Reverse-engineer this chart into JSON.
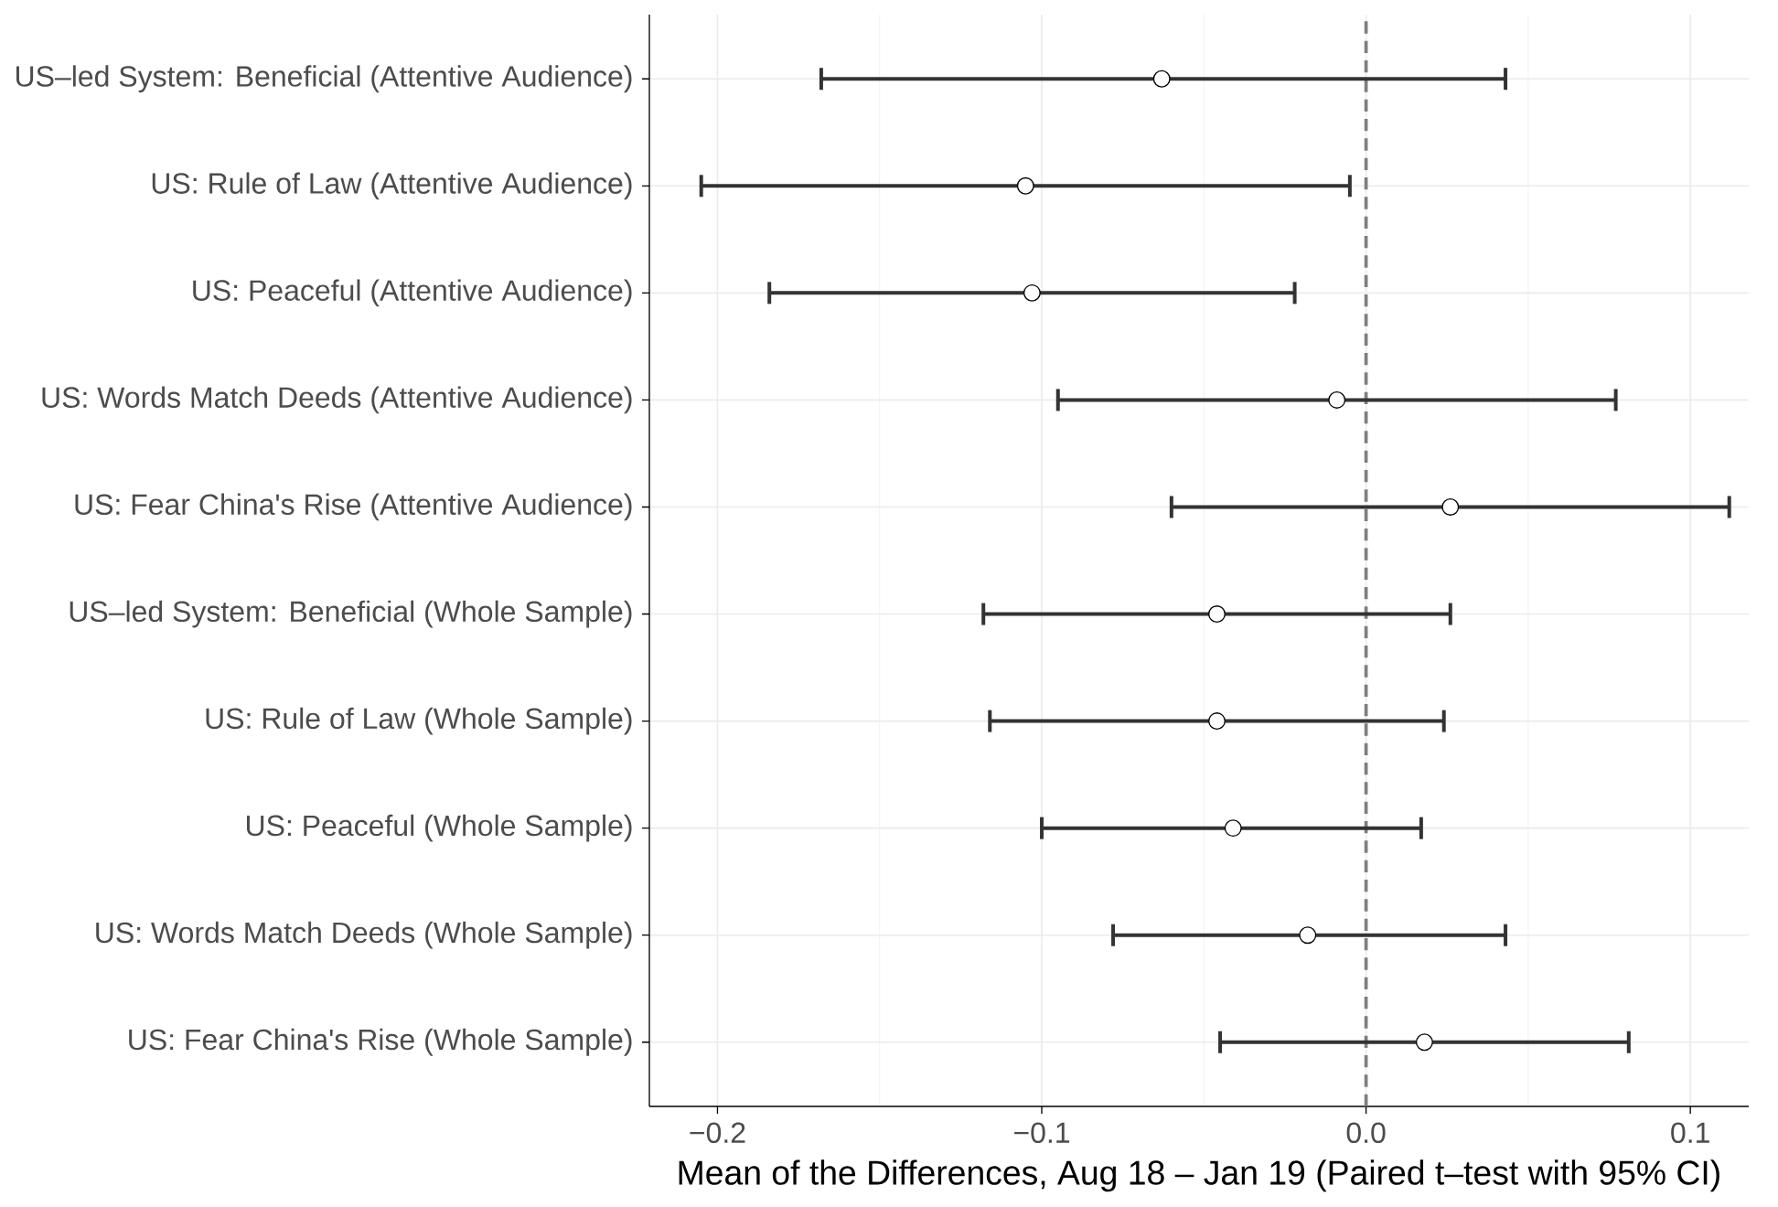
{
  "chart_data": {
    "type": "scatter",
    "orientation": "horizontal",
    "xlabel": "Mean of the Differences, Aug 18 – Jan 19 (Paired t–test with 95% CI)",
    "categories": [
      "US–led System: Beneficial (Attentive Audience)",
      "US: Rule of Law (Attentive Audience)",
      "US: Peaceful (Attentive Audience)",
      "US: Words Match Deeds (Attentive Audience)",
      "US: Fear China's Rise (Attentive Audience)",
      "US–led System: Beneficial (Whole Sample)",
      "US: Rule of Law (Whole Sample)",
      "US: Peaceful (Whole Sample)",
      "US: Words Match Deeds (Whole Sample)",
      "US: Fear China's Rise (Whole Sample)"
    ],
    "series": [
      {
        "color": "#ffffff",
        "values": [
          -0.063,
          -0.105,
          -0.103,
          -0.009,
          0.026,
          -0.046,
          -0.046,
          -0.041,
          -0.018,
          0.018
        ],
        "errors": [
          [
            -0.168,
            0.043
          ],
          [
            -0.205,
            -0.005
          ],
          [
            -0.184,
            -0.022
          ],
          [
            -0.095,
            0.077
          ],
          [
            -0.06,
            0.112
          ],
          [
            -0.118,
            0.026
          ],
          [
            -0.116,
            0.024
          ],
          [
            -0.1,
            0.017
          ],
          [
            -0.078,
            0.043
          ],
          [
            -0.045,
            0.081
          ]
        ]
      }
    ],
    "xlim": [
      -0.221,
      0.118
    ],
    "xticks": [
      {
        "value": -0.2,
        "label": "−0.2"
      },
      {
        "value": -0.1,
        "label": "−0.1"
      },
      {
        "value": 0.0,
        "label": "0.0"
      },
      {
        "value": 0.1,
        "label": "0.1"
      }
    ],
    "ref_lines": [
      {
        "axis": "x",
        "value": 0,
        "color": "#7f7f7f",
        "line_style": "dashed"
      }
    ],
    "grid": true,
    "marker": "circle"
  }
}
